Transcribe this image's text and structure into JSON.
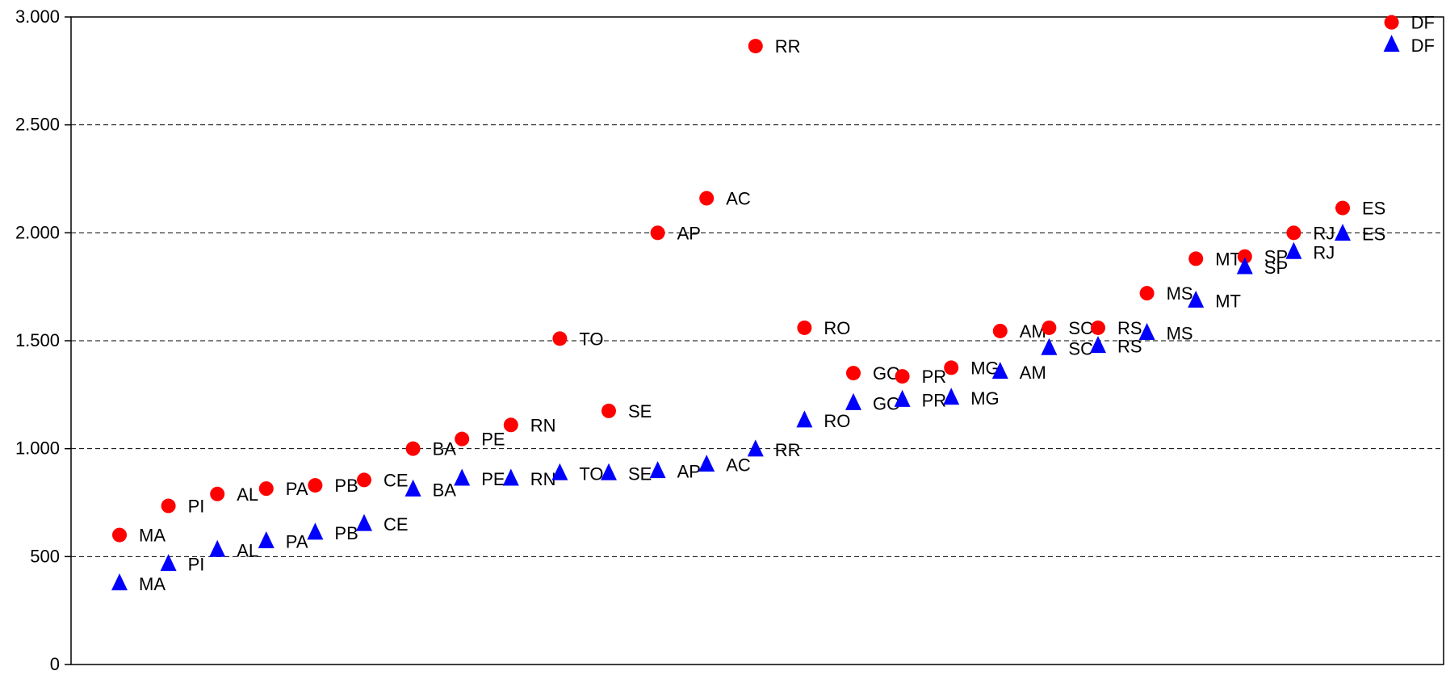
{
  "chart_data": {
    "type": "scatter",
    "title": "",
    "xlabel": "",
    "ylabel": "",
    "ylim": [
      0,
      3000
    ],
    "yticks": [
      0,
      500,
      1000,
      1500,
      2000,
      2500,
      3000
    ],
    "ytick_labels": [
      "0",
      "500",
      "1.000",
      "1.500",
      "2.000",
      "2.500",
      "3.000"
    ],
    "grid": "horizontal-dashed",
    "legend": "none",
    "categories": [
      "MA",
      "PI",
      "AL",
      "PA",
      "PB",
      "CE",
      "BA",
      "PE",
      "RN",
      "TO",
      "SE",
      "AP",
      "AC",
      "RR",
      "RO",
      "GO",
      "PR",
      "MG",
      "AM",
      "SC",
      "RS",
      "MS",
      "MT",
      "SP",
      "RJ",
      "ES",
      "DF"
    ],
    "series": [
      {
        "marker": "circle",
        "color": "#ff0000",
        "values": [
          600,
          735,
          790,
          815,
          830,
          855,
          1000,
          1045,
          1110,
          1510,
          1175,
          2000,
          2160,
          2865,
          1560,
          1350,
          1335,
          1375,
          1545,
          1560,
          1560,
          1720,
          1880,
          1890,
          2000,
          2115,
          2975
        ]
      },
      {
        "marker": "triangle",
        "color": "#0000ff",
        "values": [
          375,
          465,
          530,
          570,
          610,
          650,
          810,
          860,
          860,
          885,
          885,
          895,
          925,
          995,
          1130,
          1210,
          1225,
          1235,
          1355,
          1465,
          1475,
          1535,
          1685,
          1840,
          1910,
          1995,
          2870
        ]
      }
    ]
  }
}
